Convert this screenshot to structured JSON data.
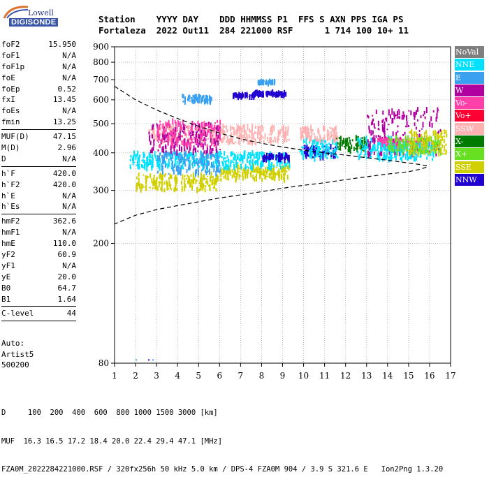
{
  "logo": {
    "line1": "Lowell",
    "line2": "DIGISONDE"
  },
  "header": {
    "line1": "Station    YYYY DAY    DDD HHMMSS P1  FFS S AXN PPS IGA PS",
    "line2": "Fortaleza  2022 Out11  284 221000 RSF      1 714 100 10+ 11"
  },
  "params": {
    "group1": [
      {
        "label": "foF2",
        "value": "15.950"
      },
      {
        "label": "foF1",
        "value": "N/A"
      },
      {
        "label": "foF1p",
        "value": "N/A"
      },
      {
        "label": "foE",
        "value": "N/A"
      },
      {
        "label": "foEp",
        "value": "0.52"
      },
      {
        "label": "fxI",
        "value": "13.45"
      },
      {
        "label": "foEs",
        "value": "N/A"
      },
      {
        "label": "fmin",
        "value": "13.25"
      }
    ],
    "group2": [
      {
        "label": "MUF(D)",
        "value": "47.15"
      },
      {
        "label": "M(D)",
        "value": "2.96"
      },
      {
        "label": "D",
        "value": "N/A"
      }
    ],
    "group3": [
      {
        "label": "h`F",
        "value": "420.0"
      },
      {
        "label": "h`F2",
        "value": "420.0"
      },
      {
        "label": "h`E",
        "value": "N/A"
      },
      {
        "label": "h`Es",
        "value": "N/A"
      }
    ],
    "group4": [
      {
        "label": "hmF2",
        "value": "362.6"
      },
      {
        "label": "hmF1",
        "value": "N/A"
      },
      {
        "label": "hmE",
        "value": "110.0"
      },
      {
        "label": "yF2",
        "value": "60.9"
      },
      {
        "label": "yF1",
        "value": "N/A"
      },
      {
        "label": "yE",
        "value": "20.0"
      },
      {
        "label": "B0",
        "value": "64.7"
      },
      {
        "label": "B1",
        "value": "1.64"
      }
    ],
    "group5": [
      {
        "label": "C-level",
        "value": "44"
      }
    ]
  },
  "auto": {
    "line1": "Auto:",
    "line2": "Artist5",
    "line3": "500200"
  },
  "legend": [
    {
      "label": "NoVal",
      "color": "#7f7f7f",
      "text": "#ffffff"
    },
    {
      "label": "NNE",
      "color": "#00e0ff",
      "text": "#ffffff"
    },
    {
      "label": "E",
      "color": "#3aa0f0",
      "text": "#ffffff"
    },
    {
      "label": "W",
      "color": "#b000a0",
      "text": "#ffffff"
    },
    {
      "label": "Vo-",
      "color": "#ff3faa",
      "text": "#ffffff"
    },
    {
      "label": "Vo+",
      "color": "#ff0033",
      "text": "#ffffff"
    },
    {
      "label": "SSW",
      "color": "#ffb0b0",
      "text": "#ffffff"
    },
    {
      "label": "X-",
      "color": "#007a00",
      "text": "#ffffff"
    },
    {
      "label": "X+",
      "color": "#66e020",
      "text": "#ffffff"
    },
    {
      "label": "SSE",
      "color": "#d0d000",
      "text": "#ffffff"
    },
    {
      "label": "NNW",
      "color": "#2000d0",
      "text": "#ffffff"
    }
  ],
  "bottom": {
    "line1": "D     100  200  400  600  800 1000 1500 3000 [km]",
    "line2": "MUF  16.3 16.5 17.2 18.4 20.0 22.4 29.4 47.1 [MHz]",
    "line3": "FZA0M_2022284221000.RSF / 320fx256h 50 kHz 5.0 km / DPS-4 FZA0M 904 / 3.9 S 321.6 E   Ion2Png 1.3.20"
  },
  "chart_data": {
    "type": "scatter",
    "xlim": [
      1,
      17
    ],
    "ylim": [
      80,
      900
    ],
    "x_ticks": [
      "1",
      "2",
      "3",
      "4",
      "5",
      "6",
      "7",
      "8",
      "9",
      "10",
      "11",
      "12",
      "13",
      "14",
      "15",
      "16",
      "17"
    ],
    "y_ticks": [
      "80",
      "200",
      "300",
      "400",
      "500",
      "600",
      "700",
      "800",
      "900"
    ],
    "grid": true,
    "legend_position": "right",
    "profile_curve": {
      "x": [
        1.0,
        2.0,
        3.0,
        4.0,
        5.0,
        6.0,
        7.0,
        8.0,
        9.0,
        10.0,
        11.0,
        12.0,
        13.0,
        14.0,
        15.0,
        15.5,
        15.9,
        15.9,
        15.5,
        15.0,
        14.0,
        13.0,
        12.0,
        11.0,
        10.0,
        9.0,
        8.0,
        7.0,
        6.0,
        5.0,
        4.0,
        3.0,
        2.0,
        1.0
      ],
      "y": [
        665,
        600,
        555,
        520,
        490,
        465,
        445,
        430,
        418,
        408,
        400,
        393,
        385,
        378,
        370,
        366,
        362,
        359,
        352,
        346,
        340,
        333,
        326,
        318,
        312,
        305,
        297,
        290,
        283,
        275,
        267,
        259,
        248,
        232
      ]
    },
    "echo_clusters": [
      {
        "mode": "SSE",
        "x": [
          2.0,
          5.9
        ],
        "y": [
          300,
          340
        ]
      },
      {
        "mode": "SSE",
        "x": [
          6.0,
          9.3
        ],
        "y": [
          325,
          360
        ]
      },
      {
        "mode": "NNE",
        "x": [
          1.7,
          9.3
        ],
        "y": [
          355,
          400
        ]
      },
      {
        "mode": "E",
        "x": [
          3.0,
          6.0
        ],
        "y": [
          340,
          400
        ]
      },
      {
        "mode": "SSW",
        "x": [
          2.6,
          9.3
        ],
        "y": [
          430,
          490
        ]
      },
      {
        "mode": "W",
        "x": [
          2.6,
          6.0
        ],
        "y": [
          400,
          500
        ]
      },
      {
        "mode": "Vo-",
        "x": [
          3.0,
          6.0
        ],
        "y": [
          420,
          510
        ]
      },
      {
        "mode": "E",
        "x": [
          4.2,
          5.6
        ],
        "y": [
          590,
          620
        ]
      },
      {
        "mode": "NNW",
        "x": [
          6.6,
          7.6
        ],
        "y": [
          612,
          625
        ]
      },
      {
        "mode": "NNW",
        "x": [
          7.6,
          9.2
        ],
        "y": [
          620,
          635
        ]
      },
      {
        "mode": "E",
        "x": [
          7.8,
          8.6
        ],
        "y": [
          680,
          692
        ]
      },
      {
        "mode": "NNW",
        "x": [
          8.0,
          9.3
        ],
        "y": [
          378,
          395
        ]
      },
      {
        "mode": "NNW",
        "x": [
          10.0,
          11.5
        ],
        "y": [
          385,
          420
        ]
      },
      {
        "mode": "NNE",
        "x": [
          9.8,
          11.6
        ],
        "y": [
          380,
          440
        ]
      },
      {
        "mode": "SSW",
        "x": [
          9.8,
          11.6
        ],
        "y": [
          440,
          485
        ]
      },
      {
        "mode": "X-",
        "x": [
          11.5,
          13.0
        ],
        "y": [
          405,
          450
        ]
      },
      {
        "mode": "NNE",
        "x": [
          12.5,
          14.3
        ],
        "y": [
          380,
          450
        ]
      },
      {
        "mode": "W",
        "x": [
          13.0,
          16.5
        ],
        "y": [
          390,
          560
        ]
      },
      {
        "mode": "Vo-",
        "x": [
          13.5,
          15.8
        ],
        "y": [
          415,
          445
        ]
      },
      {
        "mode": "NNE",
        "x": [
          13.5,
          16.2
        ],
        "y": [
          380,
          430
        ]
      },
      {
        "mode": "X+",
        "x": [
          14.0,
          16.5
        ],
        "y": [
          400,
          450
        ]
      },
      {
        "mode": "SSE",
        "x": [
          15.0,
          16.8
        ],
        "y": [
          395,
          470
        ]
      }
    ]
  }
}
